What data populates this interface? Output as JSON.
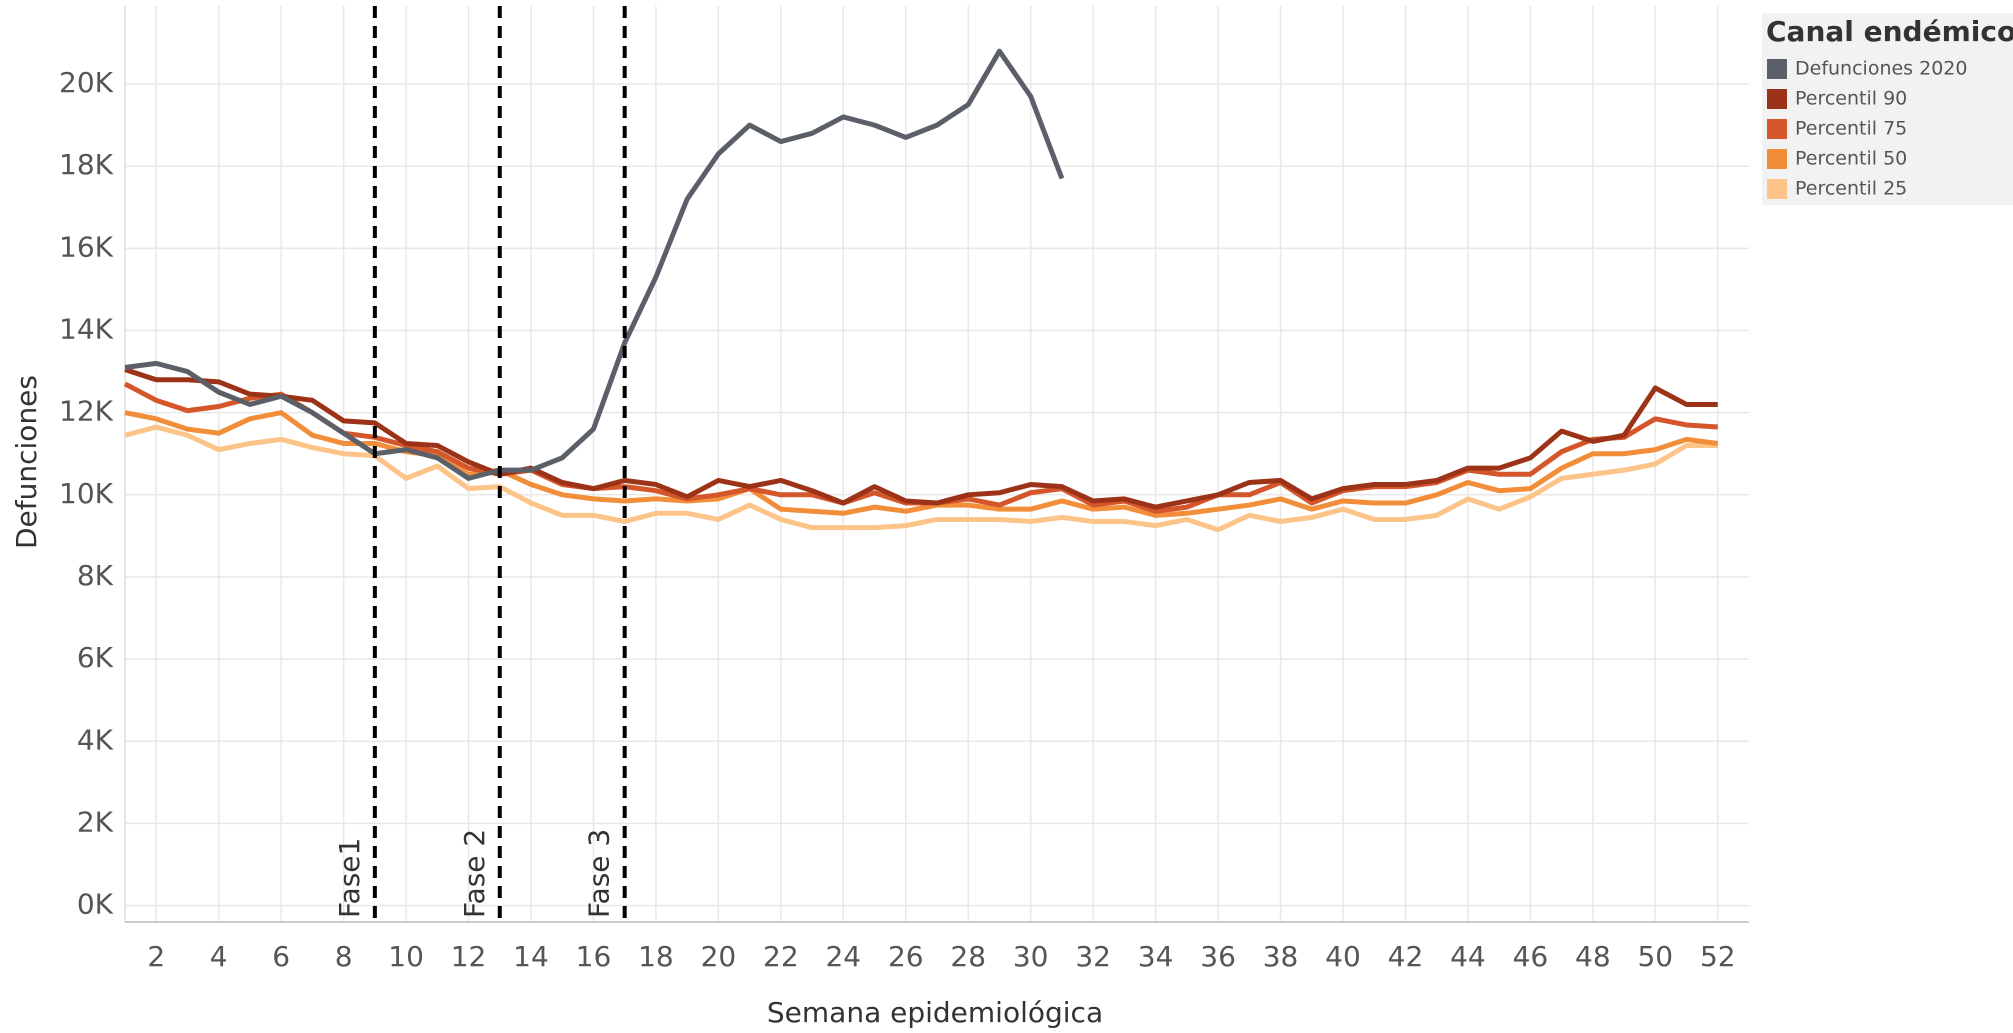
{
  "chart_data": {
    "type": "line",
    "x_label": "Semana epidemiológica",
    "y_label": "Defunciones",
    "legend_title": "Canal endémico",
    "legend": "top-right",
    "grid": true,
    "x": [
      1,
      2,
      3,
      4,
      5,
      6,
      7,
      8,
      9,
      10,
      11,
      12,
      13,
      14,
      15,
      16,
      17,
      18,
      19,
      20,
      21,
      22,
      23,
      24,
      25,
      26,
      27,
      28,
      29,
      30,
      31,
      32,
      33,
      34,
      35,
      36,
      37,
      38,
      39,
      40,
      41,
      42,
      43,
      44,
      45,
      46,
      47,
      48,
      49,
      50,
      51,
      52
    ],
    "xlim": [
      1,
      53
    ],
    "xticks": [
      2,
      4,
      6,
      8,
      10,
      12,
      14,
      16,
      18,
      20,
      22,
      24,
      26,
      28,
      30,
      32,
      34,
      36,
      38,
      40,
      42,
      44,
      46,
      48,
      50,
      52
    ],
    "ylim": [
      -400,
      21900
    ],
    "yticks": [
      {
        "value": 0,
        "label": "0K"
      },
      {
        "value": 2000,
        "label": "2K"
      },
      {
        "value": 4000,
        "label": "4K"
      },
      {
        "value": 6000,
        "label": "6K"
      },
      {
        "value": 8000,
        "label": "8K"
      },
      {
        "value": 10000,
        "label": "10K"
      },
      {
        "value": 12000,
        "label": "12K"
      },
      {
        "value": 14000,
        "label": "14K"
      },
      {
        "value": 16000,
        "label": "16K"
      },
      {
        "value": 18000,
        "label": "18K"
      },
      {
        "value": 20000,
        "label": "20K"
      }
    ],
    "annotations": [
      {
        "x": 9,
        "label": "Fase1"
      },
      {
        "x": 13,
        "label": "Fase 2"
      },
      {
        "x": 17,
        "label": "Fase 3"
      }
    ],
    "series": [
      {
        "name": "Defunciones 2020",
        "color": "#5b6068",
        "values": [
          13100,
          13200,
          13000,
          12500,
          12200,
          12400,
          12000,
          11500,
          11000,
          11100,
          10900,
          10400,
          10600,
          10600,
          10900,
          11600,
          13700,
          15300,
          17200,
          18300,
          19000,
          18600,
          18800,
          19200,
          19000,
          18700,
          19000,
          19500,
          20800,
          19700,
          17700,
          null,
          null,
          null,
          null,
          null,
          null,
          null,
          null,
          null,
          null,
          null,
          null,
          null,
          null,
          null,
          null,
          null,
          null,
          null,
          null,
          null
        ]
      },
      {
        "name": "Percentil 90",
        "color": "#9c3318",
        "values": [
          13050,
          12800,
          12800,
          12750,
          12450,
          12400,
          12300,
          11800,
          11750,
          11250,
          11200,
          10800,
          10500,
          10650,
          10300,
          10150,
          10350,
          10250,
          9950,
          10350,
          10200,
          10350,
          10100,
          9800,
          10200,
          9850,
          9800,
          10000,
          10050,
          10250,
          10200,
          9850,
          9900,
          9700,
          9850,
          10000,
          10300,
          10350,
          9900,
          10150,
          10250,
          10250,
          10350,
          10650,
          10650,
          10900,
          11550,
          11300,
          11450,
          12600,
          12200,
          12200
        ]
      },
      {
        "name": "Percentil 75",
        "color": "#d4562a",
        "values": [
          12700,
          12300,
          12050,
          12150,
          12350,
          12450,
          12000,
          11500,
          11400,
          11200,
          11050,
          10650,
          10500,
          10600,
          10250,
          10150,
          10200,
          10100,
          9900,
          10000,
          10150,
          10000,
          10000,
          9800,
          10050,
          9800,
          9800,
          9900,
          9750,
          10050,
          10150,
          9750,
          9850,
          9600,
          9700,
          10000,
          10000,
          10300,
          9800,
          10100,
          10200,
          10200,
          10300,
          10600,
          10500,
          10500,
          11050,
          11350,
          11400,
          11850,
          11700,
          11650
        ]
      },
      {
        "name": "Percentil 50",
        "color": "#f28e3a",
        "values": [
          12000,
          11850,
          11600,
          11500,
          11850,
          12000,
          11450,
          11250,
          11250,
          11050,
          10950,
          10500,
          10600,
          10250,
          10000,
          9900,
          9850,
          9900,
          9850,
          9900,
          10150,
          9650,
          9600,
          9550,
          9700,
          9600,
          9750,
          9750,
          9650,
          9650,
          9850,
          9650,
          9700,
          9500,
          9550,
          9650,
          9750,
          9900,
          9650,
          9850,
          9800,
          9800,
          10000,
          10300,
          10100,
          10150,
          10650,
          11000,
          11000,
          11100,
          11350,
          11250
        ]
      },
      {
        "name": "Percentil 25",
        "color": "#fcc489",
        "values": [
          11450,
          11650,
          11450,
          11100,
          11250,
          11350,
          11150,
          11000,
          10950,
          10400,
          10700,
          10150,
          10200,
          9800,
          9500,
          9500,
          9350,
          9550,
          9550,
          9400,
          9750,
          9400,
          9200,
          9200,
          9200,
          9250,
          9400,
          9400,
          9400,
          9350,
          9450,
          9350,
          9350,
          9250,
          9400,
          9150,
          9500,
          9350,
          9450,
          9650,
          9400,
          9400,
          9500,
          9900,
          9650,
          9950,
          10400,
          10500,
          10600,
          10750,
          11200,
          11200
        ]
      }
    ]
  }
}
